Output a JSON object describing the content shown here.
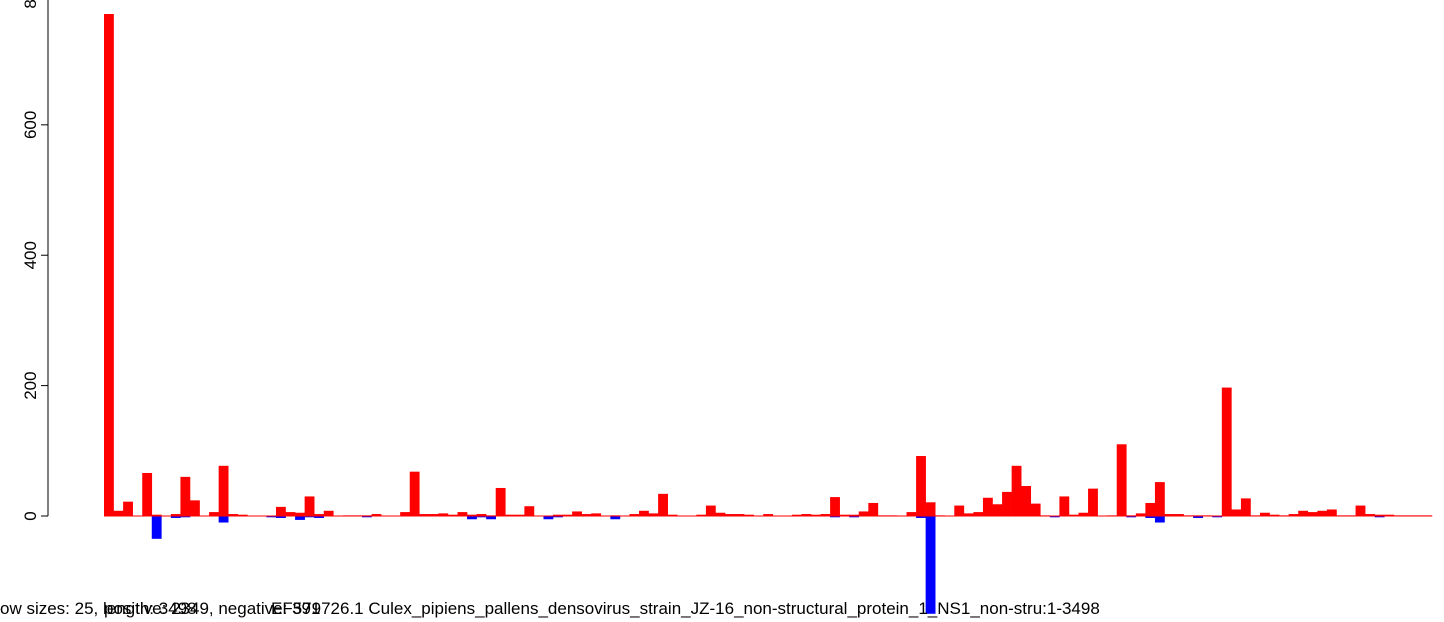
{
  "chart_data": {
    "type": "bar",
    "title": "",
    "ylabel": "",
    "ylim": [
      -150,
      800
    ],
    "y_ticks": [
      "0",
      "200",
      "400",
      "600",
      "800"
    ],
    "x_label_overlap": [
      "ow sizes: 25, length: 3498",
      "positive: 2349, negative: 391",
      "EF579726.1 Culex_pipiens_pallens_densovirus_strain_JZ-16_non-structural_protein_1_NS1_non-stru:1-3498"
    ],
    "grid": false,
    "legend": "none",
    "colors": {
      "positive": "#ff0000",
      "negative": "#0000ff"
    },
    "series": [
      {
        "name": "positive",
        "values": [
          770,
          8,
          22,
          0,
          66,
          2,
          0,
          3,
          60,
          24,
          0,
          6,
          77,
          3,
          2,
          0,
          0,
          0,
          14,
          6,
          5,
          30,
          3,
          8,
          0,
          1,
          1,
          1,
          3,
          0,
          0,
          6,
          68,
          3,
          3,
          4,
          2,
          6,
          2,
          3,
          1,
          43,
          2,
          2,
          15,
          0,
          0,
          2,
          2,
          7,
          3,
          4,
          0,
          1,
          0,
          3,
          8,
          4,
          34,
          2,
          0,
          0,
          2,
          16,
          5,
          3,
          3,
          2,
          0,
          3,
          0,
          0,
          2,
          3,
          2,
          3,
          29,
          2,
          2,
          7,
          20,
          1,
          1,
          0,
          6,
          92,
          21,
          1,
          0,
          16,
          4,
          6,
          28,
          18,
          37,
          77,
          46,
          19,
          1,
          0,
          30,
          2,
          5,
          42,
          0,
          1,
          110,
          1,
          4,
          20,
          52,
          3,
          3,
          1,
          1,
          1,
          0,
          197,
          10,
          27,
          1,
          5,
          2,
          1,
          3,
          8,
          6,
          8,
          10,
          1,
          1,
          16,
          3,
          2,
          2,
          1,
          1,
          1,
          1
        ]
      },
      {
        "name": "negative",
        "values": [
          0,
          0,
          0,
          0,
          0,
          -35,
          0,
          -3,
          -2,
          0,
          0,
          0,
          -10,
          0,
          0,
          0,
          0,
          -2,
          -3,
          0,
          -6,
          -2,
          -3,
          0,
          0,
          0,
          0,
          -2,
          0,
          0,
          0,
          0,
          0,
          0,
          0,
          0,
          0,
          0,
          -5,
          -2,
          -5,
          0,
          0,
          0,
          0,
          0,
          -5,
          -2,
          0,
          0,
          0,
          0,
          0,
          -5,
          0,
          0,
          0,
          0,
          0,
          0,
          0,
          0,
          0,
          0,
          0,
          0,
          0,
          0,
          0,
          0,
          0,
          0,
          0,
          0,
          0,
          0,
          -2,
          0,
          -2,
          0,
          0,
          0,
          0,
          0,
          0,
          -3,
          -150,
          0,
          0,
          0,
          0,
          0,
          0,
          0,
          0,
          0,
          0,
          0,
          0,
          -2,
          0,
          0,
          0,
          0,
          0,
          0,
          0,
          -2,
          0,
          -3,
          -10,
          0,
          0,
          0,
          -3,
          0,
          -2,
          0,
          0,
          0,
          0,
          0,
          0,
          0,
          0,
          0,
          0,
          0,
          0,
          0,
          0,
          0,
          0,
          -2,
          0,
          0,
          0,
          0,
          0,
          0,
          0
        ]
      }
    ]
  }
}
